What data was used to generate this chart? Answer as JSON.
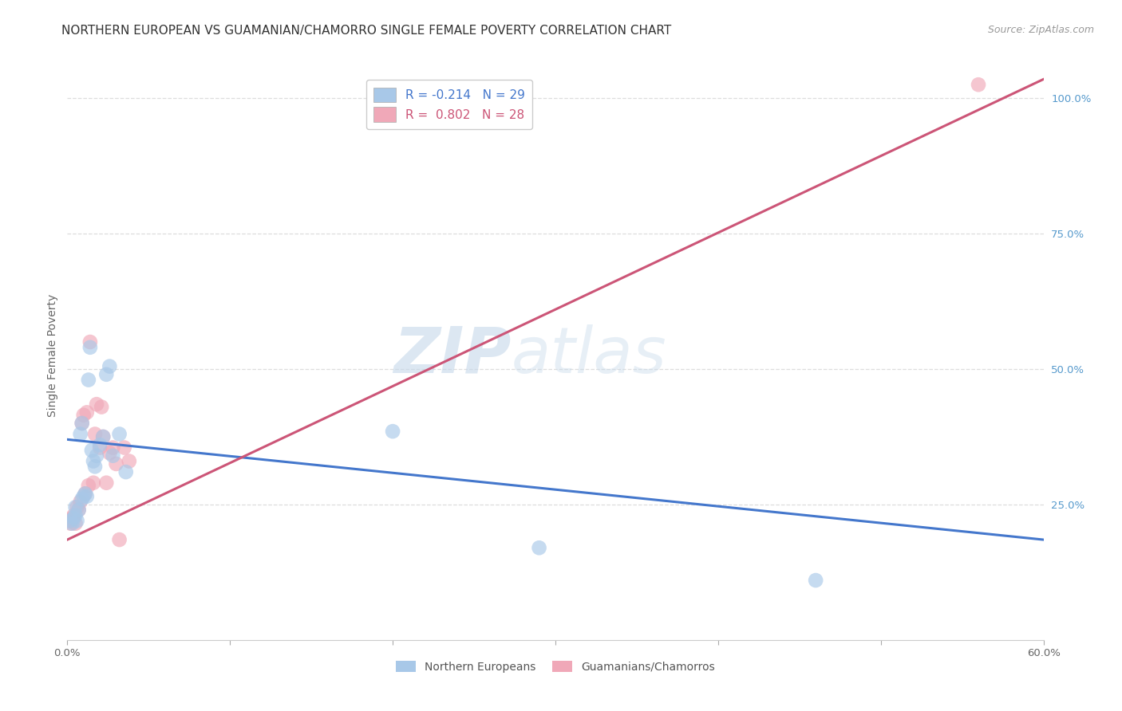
{
  "title": "NORTHERN EUROPEAN VS GUAMANIAN/CHAMORRO SINGLE FEMALE POVERTY CORRELATION CHART",
  "source": "Source: ZipAtlas.com",
  "ylabel": "Single Female Poverty",
  "watermark_zip": "ZIP",
  "watermark_atlas": "atlas",
  "xlim": [
    0.0,
    0.6
  ],
  "ylim": [
    0.0,
    1.05
  ],
  "ytick_values": [
    0.25,
    0.5,
    0.75,
    1.0
  ],
  "blue_R": -0.214,
  "blue_N": 29,
  "pink_R": 0.802,
  "pink_N": 28,
  "blue_color": "#a8c8e8",
  "pink_color": "#f0a8b8",
  "blue_line_color": "#4477cc",
  "pink_line_color": "#cc5577",
  "blue_legend_label_top": "R = -0.214   N = 29",
  "pink_legend_label_top": "R =  0.802   N = 28",
  "blue_legend_label_bot": "Northern Europeans",
  "pink_legend_label_bot": "Guamanians/Chamorros",
  "blue_points_x": [
    0.002,
    0.003,
    0.004,
    0.005,
    0.005,
    0.006,
    0.007,
    0.008,
    0.009,
    0.009,
    0.01,
    0.011,
    0.012,
    0.013,
    0.014,
    0.015,
    0.016,
    0.017,
    0.018,
    0.02,
    0.022,
    0.024,
    0.026,
    0.028,
    0.032,
    0.036,
    0.2,
    0.29,
    0.46
  ],
  "blue_points_y": [
    0.22,
    0.215,
    0.225,
    0.23,
    0.245,
    0.22,
    0.24,
    0.38,
    0.26,
    0.4,
    0.265,
    0.27,
    0.265,
    0.48,
    0.54,
    0.35,
    0.33,
    0.32,
    0.34,
    0.36,
    0.375,
    0.49,
    0.505,
    0.34,
    0.38,
    0.31,
    0.385,
    0.17,
    0.11
  ],
  "pink_points_x": [
    0.001,
    0.002,
    0.003,
    0.004,
    0.005,
    0.006,
    0.007,
    0.008,
    0.009,
    0.01,
    0.011,
    0.012,
    0.013,
    0.014,
    0.016,
    0.017,
    0.018,
    0.02,
    0.021,
    0.022,
    0.024,
    0.026,
    0.028,
    0.03,
    0.032,
    0.035,
    0.038,
    0.56
  ],
  "pink_points_y": [
    0.22,
    0.215,
    0.225,
    0.23,
    0.215,
    0.245,
    0.24,
    0.255,
    0.4,
    0.415,
    0.27,
    0.42,
    0.285,
    0.55,
    0.29,
    0.38,
    0.435,
    0.355,
    0.43,
    0.375,
    0.29,
    0.345,
    0.355,
    0.325,
    0.185,
    0.355,
    0.33,
    1.025
  ],
  "blue_line_x0": 0.0,
  "blue_line_x1": 0.6,
  "blue_line_y0": 0.37,
  "blue_line_y1": 0.185,
  "pink_line_x0": 0.0,
  "pink_line_x1": 0.6,
  "pink_line_y0": 0.185,
  "pink_line_y1": 1.035,
  "grid_color": "#dddddd",
  "background_color": "#ffffff",
  "title_fontsize": 11,
  "axis_label_fontsize": 10,
  "tick_fontsize": 9.5,
  "right_tick_color": "#5599cc"
}
